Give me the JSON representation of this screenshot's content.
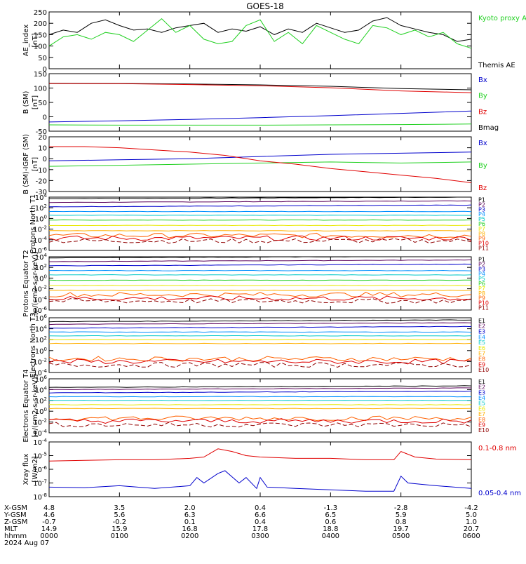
{
  "title": "GOES-18",
  "colors": {
    "black": "#000000",
    "red": "#e00000",
    "green": "#20d020",
    "blue": "#0000cc"
  },
  "date_label": "2024 Aug 07",
  "x_axis": {
    "ticks": [
      "0000",
      "0100",
      "0200",
      "0300",
      "0400",
      "0500",
      "0600"
    ],
    "rows": [
      {
        "label": "X-GSM",
        "values": [
          "4.8",
          "3.5",
          "2.0",
          "0.4",
          "-1.3",
          "-2.8",
          "-4.2"
        ]
      },
      {
        "label": "Y-GSM",
        "values": [
          "4.6",
          "5.6",
          "6.3",
          "6.6",
          "6.5",
          "5.9",
          "5.0"
        ]
      },
      {
        "label": "Z-GSM",
        "values": [
          "-0.7",
          "-0.2",
          "0.1",
          "0.4",
          "0.6",
          "0.8",
          "1.0"
        ]
      },
      {
        "label": "MLT",
        "values": [
          "14.9",
          "15.9",
          "16.8",
          "17.8",
          "18.8",
          "19.7",
          "20.7"
        ]
      },
      {
        "label": "hhmm",
        "values": [
          "0000",
          "0100",
          "0200",
          "0300",
          "0400",
          "0500",
          "0600"
        ]
      }
    ]
  },
  "chart_data": [
    {
      "type": "line",
      "ylabel": "AE_index",
      "yunits": "[nT]",
      "ylim": [
        0,
        250
      ],
      "log": false,
      "yticks": [
        "0",
        "50",
        "100",
        "150",
        "200",
        "250"
      ],
      "legend": [
        {
          "name": "Kyoto proxy AE",
          "color": "green"
        },
        {
          "name": "Themis AE",
          "color": "black"
        }
      ],
      "series": [
        {
          "name": "Themis AE",
          "color": "black",
          "x": [
            0,
            0.2,
            0.4,
            0.6,
            0.8,
            1.0,
            1.2,
            1.4,
            1.6,
            1.8,
            2.0,
            2.2,
            2.4,
            2.6,
            2.8,
            3.0,
            3.2,
            3.4,
            3.6,
            3.8,
            4.0,
            4.2,
            4.4,
            4.6,
            4.8,
            5.0,
            5.2,
            5.4,
            5.6,
            5.8,
            6.0
          ],
          "y": [
            150,
            170,
            160,
            200,
            215,
            190,
            170,
            175,
            160,
            180,
            190,
            200,
            160,
            175,
            165,
            185,
            150,
            175,
            160,
            200,
            180,
            160,
            170,
            210,
            225,
            190,
            175,
            160,
            150,
            120,
            130
          ]
        },
        {
          "name": "Kyoto proxy AE",
          "color": "green",
          "x": [
            0,
            0.2,
            0.4,
            0.6,
            0.8,
            1.0,
            1.2,
            1.4,
            1.6,
            1.8,
            2.0,
            2.2,
            2.4,
            2.6,
            2.8,
            3.0,
            3.2,
            3.4,
            3.6,
            3.8,
            4.0,
            4.2,
            4.4,
            4.6,
            4.8,
            5.0,
            5.2,
            5.4,
            5.6,
            5.8,
            6.0
          ],
          "y": [
            100,
            140,
            150,
            130,
            160,
            150,
            120,
            170,
            220,
            160,
            190,
            130,
            110,
            120,
            190,
            215,
            120,
            160,
            110,
            190,
            160,
            130,
            110,
            190,
            180,
            150,
            170,
            140,
            160,
            110,
            90
          ]
        }
      ]
    },
    {
      "type": "line",
      "ylabel": "B (SM)",
      "yunits": "[nT]",
      "ylim": [
        -50,
        150
      ],
      "log": false,
      "yticks": [
        "-50",
        "0",
        "50",
        "100",
        "150"
      ],
      "legend": [
        {
          "name": "Bx",
          "color": "blue"
        },
        {
          "name": "By",
          "color": "green"
        },
        {
          "name": "Bz",
          "color": "red"
        },
        {
          "name": "Bmag",
          "color": "black"
        }
      ],
      "series": [
        {
          "name": "Bmag",
          "color": "black",
          "x": [
            0,
            1,
            2,
            3,
            4,
            5,
            6
          ],
          "y": [
            117,
            116,
            114,
            111,
            106,
            98,
            94
          ]
        },
        {
          "name": "Bz",
          "color": "red",
          "x": [
            0,
            1,
            2,
            3,
            4,
            5,
            6
          ],
          "y": [
            116,
            115,
            112,
            108,
            101,
            90,
            84
          ]
        },
        {
          "name": "Bx",
          "color": "blue",
          "x": [
            0,
            1,
            2,
            3,
            4,
            5,
            6
          ],
          "y": [
            -18,
            -14,
            -9,
            -3,
            4,
            12,
            20
          ]
        },
        {
          "name": "By",
          "color": "green",
          "x": [
            0,
            1,
            2,
            3,
            4,
            5,
            6
          ],
          "y": [
            -28,
            -29,
            -29,
            -29,
            -28,
            -27,
            -25
          ]
        }
      ]
    },
    {
      "type": "line",
      "ylabel": "B (SM)-IGRF (SM)",
      "yunits": "[nT]",
      "ylim": [
        -30,
        20
      ],
      "log": false,
      "yticks": [
        "-30",
        "-20",
        "-10",
        "0",
        "10",
        "20"
      ],
      "legend": [
        {
          "name": "Bx",
          "color": "blue"
        },
        {
          "name": "By",
          "color": "green"
        },
        {
          "name": "Bz",
          "color": "red"
        }
      ],
      "series": [
        {
          "name": "Bx",
          "color": "blue",
          "x": [
            0,
            1,
            2,
            3,
            4,
            5,
            6
          ],
          "y": [
            -2,
            -1,
            0,
            2,
            4,
            5,
            6
          ]
        },
        {
          "name": "By",
          "color": "green",
          "x": [
            0,
            1,
            2,
            3,
            4,
            5,
            6
          ],
          "y": [
            -7,
            -6,
            -5,
            -4,
            -3,
            -4,
            -3
          ]
        },
        {
          "name": "Bz",
          "color": "red",
          "x": [
            0,
            0.5,
            1,
            1.5,
            2,
            2.5,
            3,
            3.5,
            4,
            4.5,
            5,
            5.5,
            6
          ],
          "y": [
            11,
            11,
            10,
            8,
            6,
            3,
            -2,
            -5,
            -9,
            -12,
            -15,
            -18,
            -22
          ]
        }
      ]
    },
    {
      "type": "line",
      "ylabel": "Protons North T1",
      "yunits": "",
      "ylim": [
        -6,
        4
      ],
      "log": true,
      "yticks": [
        "10^-6",
        "10^-4",
        "10^-2",
        "10^0",
        "10^2",
        "10^4"
      ],
      "legend": [
        {
          "name": "P1",
          "color": "#000000"
        },
        {
          "name": "P2",
          "color": "#5a005a"
        },
        {
          "name": "P3",
          "color": "#0000cc"
        },
        {
          "name": "P4",
          "color": "#0090ff"
        },
        {
          "name": "P5",
          "color": "#00c8c8"
        },
        {
          "name": "P6",
          "color": "#20d020"
        },
        {
          "name": "P7",
          "color": "#e8e800"
        },
        {
          "name": "P8",
          "color": "#ffb000"
        },
        {
          "name": "P9",
          "color": "#ff6000"
        },
        {
          "name": "P10",
          "color": "#e00000"
        },
        {
          "name": "P11",
          "color": "#900000"
        }
      ],
      "levels": [
        3.7,
        3.0,
        2.2,
        1.3,
        0.6,
        -0.3,
        -1.3,
        -2.3,
        -3.2,
        -3.7,
        -4.2
      ]
    },
    {
      "type": "line",
      "ylabel": "Protons Equator T2",
      "yunits": "[p/(cm2-s-sr-keV)]",
      "ylim": [
        -6,
        4
      ],
      "log": true,
      "yticks": [
        "10^-6",
        "10^-4",
        "10^-2",
        "10^0",
        "10^2",
        "10^4"
      ],
      "legend": [
        {
          "name": "P1",
          "color": "#000000"
        },
        {
          "name": "P2",
          "color": "#5a005a"
        },
        {
          "name": "P3",
          "color": "#0000cc"
        },
        {
          "name": "P4",
          "color": "#0090ff"
        },
        {
          "name": "P5",
          "color": "#00c8c8"
        },
        {
          "name": "P6",
          "color": "#20d020"
        },
        {
          "name": "P7",
          "color": "#e8e800"
        },
        {
          "name": "P8",
          "color": "#ffb000"
        },
        {
          "name": "P9",
          "color": "#ff6000"
        },
        {
          "name": "P10",
          "color": "#e00000"
        },
        {
          "name": "P11",
          "color": "#900000"
        }
      ],
      "levels": [
        3.8,
        3.1,
        2.3,
        1.4,
        0.6,
        -0.4,
        -1.4,
        -2.3,
        -3.1,
        -3.8,
        -4.3
      ]
    },
    {
      "type": "line",
      "ylabel": "Electrons North T3",
      "yunits": "",
      "ylim": [
        -4,
        6
      ],
      "log": true,
      "yticks": [
        "10^-4",
        "10^-2",
        "10^0",
        "10^2",
        "10^4",
        "10^6"
      ],
      "legend": [
        {
          "name": "E1",
          "color": "#000000"
        },
        {
          "name": "E2",
          "color": "#5a005a"
        },
        {
          "name": "E3",
          "color": "#0000cc"
        },
        {
          "name": "E4",
          "color": "#0090ff"
        },
        {
          "name": "E5",
          "color": "#00c8c8"
        },
        {
          "name": "E6",
          "color": "#e8e800"
        },
        {
          "name": "E7",
          "color": "#ffb000"
        },
        {
          "name": "E8",
          "color": "#ff6000"
        },
        {
          "name": "E9",
          "color": "#e00000"
        },
        {
          "name": "E10",
          "color": "#900000"
        }
      ],
      "levels": [
        5.3,
        4.8,
        4.1,
        3.4,
        2.7,
        2.0,
        1.3,
        -1.5,
        -2.0,
        -2.6
      ]
    },
    {
      "type": "line",
      "ylabel": "Electrons Equator T4",
      "yunits": "[e/(cm2-s-sr-keV)]",
      "ylim": [
        -4,
        6
      ],
      "log": true,
      "yticks": [
        "10^-4",
        "10^-2",
        "10^0",
        "10^2",
        "10^4",
        "10^6"
      ],
      "legend": [
        {
          "name": "E1",
          "color": "#000000"
        },
        {
          "name": "E2",
          "color": "#5a005a"
        },
        {
          "name": "E3",
          "color": "#0000cc"
        },
        {
          "name": "E4",
          "color": "#0090ff"
        },
        {
          "name": "E5",
          "color": "#00c8c8"
        },
        {
          "name": "E6",
          "color": "#e8e800"
        },
        {
          "name": "E7",
          "color": "#ffb000"
        },
        {
          "name": "E8",
          "color": "#ff6000"
        },
        {
          "name": "E9",
          "color": "#e00000"
        },
        {
          "name": "E10",
          "color": "#900000"
        }
      ],
      "levels": [
        4.4,
        4.0,
        3.4,
        2.7,
        2.0,
        1.2,
        0.5,
        -1.3,
        -1.8,
        -2.5
      ]
    },
    {
      "type": "line",
      "ylabel": "Xray flux",
      "yunits": "[W/m2]",
      "ylim": [
        -8,
        -4
      ],
      "log": true,
      "yticks": [
        "10^-8",
        "10^-7",
        "10^-6",
        "10^-5",
        "10^-4"
      ],
      "legend": [
        {
          "name": "0.1-0.8 nm",
          "color": "red"
        },
        {
          "name": "0.05-0.4 nm",
          "color": "blue"
        }
      ],
      "series": [
        {
          "name": "0.1-0.8 nm",
          "color": "red",
          "x": [
            0,
            0.5,
            1,
            1.5,
            2,
            2.2,
            2.4,
            2.6,
            2.8,
            3.0,
            3.5,
            4,
            4.5,
            4.9,
            5.0,
            5.2,
            5.5,
            6
          ],
          "y": [
            -5.4,
            -5.35,
            -5.3,
            -5.3,
            -5.2,
            -5.1,
            -4.5,
            -4.7,
            -5.0,
            -5.1,
            -5.2,
            -5.2,
            -5.3,
            -5.3,
            -4.7,
            -5.1,
            -5.25,
            -5.3
          ]
        },
        {
          "name": "0.05-0.4 nm",
          "color": "blue",
          "x": [
            0,
            0.5,
            1,
            1.5,
            2,
            2.1,
            2.2,
            2.4,
            2.5,
            2.7,
            2.8,
            2.95,
            3.0,
            3.1,
            3.5,
            4,
            4.5,
            4.9,
            5.0,
            5.1,
            5.3,
            5.5,
            6
          ],
          "y": [
            -7.3,
            -7.35,
            -7.2,
            -7.4,
            -7.2,
            -6.6,
            -7.0,
            -6.3,
            -6.1,
            -7.0,
            -6.6,
            -7.4,
            -6.6,
            -7.3,
            -7.4,
            -7.5,
            -7.6,
            -7.6,
            -6.5,
            -7.0,
            -7.1,
            -7.2,
            -7.4
          ]
        }
      ]
    }
  ]
}
